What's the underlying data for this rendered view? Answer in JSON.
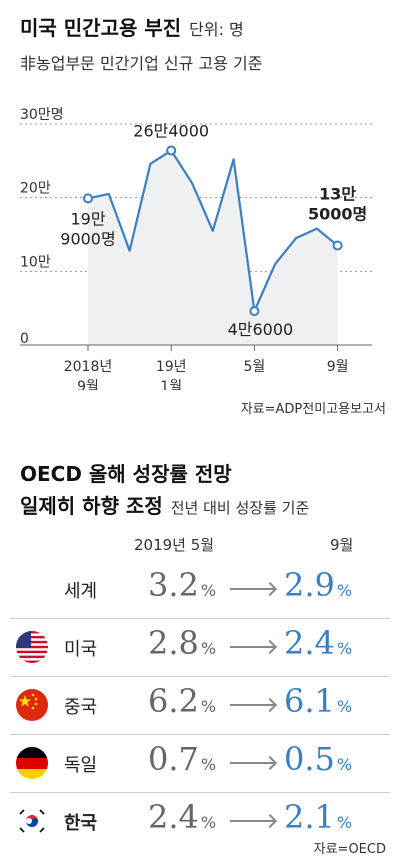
{
  "header": {
    "title": "미국 민간고용 부진",
    "unit": "단위: 명",
    "subtitle": "非농업부문 민간기업 신규 고용 기준"
  },
  "chart_data": {
    "type": "line",
    "y_ticks": [
      "30만명",
      "20만",
      "10만",
      "0"
    ],
    "y_tick_values": [
      300000,
      200000,
      100000,
      0
    ],
    "ylim": [
      0,
      300000
    ],
    "x_tick_labels": [
      {
        "lines": [
          "2018년",
          "9월"
        ],
        "index": 0
      },
      {
        "lines": [
          "19년",
          "1월"
        ],
        "index": 4
      },
      {
        "lines": [
          "5월"
        ],
        "index": 8
      },
      {
        "lines": [
          "9월"
        ],
        "index": 12
      }
    ],
    "values": [
      199000,
      205000,
      128000,
      246000,
      264000,
      220000,
      155000,
      252000,
      46000,
      110000,
      145000,
      158000,
      135000
    ],
    "annotations": [
      {
        "index": 0,
        "lines": [
          "19만",
          "9000명"
        ]
      },
      {
        "index": 4,
        "lines": [
          "26만4000"
        ]
      },
      {
        "index": 8,
        "lines": [
          "4만6000"
        ]
      },
      {
        "index": 12,
        "lines": [
          "13만",
          "5000명"
        ]
      }
    ],
    "grid": true
  },
  "source1": "자료=ADP전미고용보고서",
  "section2": {
    "title": "OECD 올해 성장률 전망",
    "title2": "일제히 하향 조정",
    "subtitle": "전년 대비 성장률 기준",
    "col_from": "2019년 5월",
    "col_to": "9월",
    "rows": [
      {
        "country": "세계",
        "from": "3.2",
        "to": "2.9",
        "flag": "none"
      },
      {
        "country": "미국",
        "from": "2.8",
        "to": "2.4",
        "flag": "us-flag"
      },
      {
        "country": "중국",
        "from": "6.2",
        "to": "6.1",
        "flag": "china-flag"
      },
      {
        "country": "독일",
        "from": "0.7",
        "to": "0.5",
        "flag": "germany-flag"
      },
      {
        "country": "한국",
        "from": "2.4",
        "to": "2.1",
        "flag": "korea-flag"
      }
    ],
    "pct": "%",
    "source": "자료=OECD"
  },
  "colors": {
    "line": "#3a7fc0",
    "area": "#eef0f2",
    "accent": "#3a7fc0",
    "grid": "#9a9a9a"
  }
}
